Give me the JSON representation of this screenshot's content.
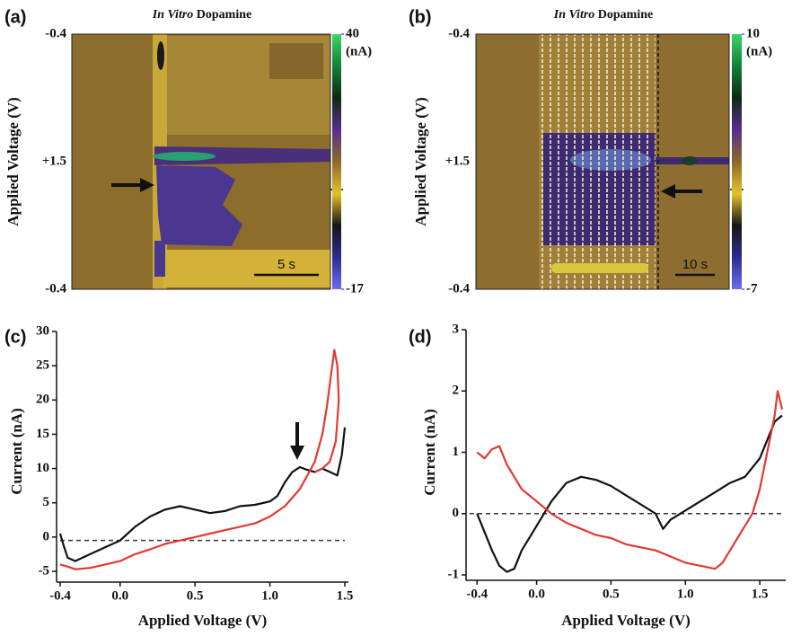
{
  "chart_data": [
    {
      "type": "heatmap",
      "panel": "(a)",
      "title_italic": "In Vitro",
      "title": "Dopamine",
      "ylabel": "Applied Voltage (V)",
      "ytick_labels": [
        "-0.4",
        "+1.5",
        "-0.4"
      ],
      "clim": [
        -17,
        40
      ],
      "cticks": [
        40,
        -17
      ],
      "colorbar_label": "(nA)",
      "scale_bar": "5 s",
      "colorscale": [
        "#3bd36a",
        "#15803a",
        "#0b2a14",
        "#5a2d8c",
        "#8a6a2a",
        "#e4c22a",
        "#161616",
        "#2c2c90",
        "#6b6cf2"
      ]
    },
    {
      "type": "heatmap",
      "panel": "(b)",
      "title_italic": "In Vitro",
      "title": "Dopamine",
      "ylabel": "Applied Voltage (V)",
      "ytick_labels": [
        "-0.4",
        "+1.5",
        "-0.4"
      ],
      "clim": [
        -7,
        10
      ],
      "cticks": [
        10,
        -7
      ],
      "colorbar_label": "(nA)",
      "scale_bar": "10 s",
      "colorscale": [
        "#3bd36a",
        "#15803a",
        "#0b2a14",
        "#5a2d8c",
        "#8a6a2a",
        "#e4c22a",
        "#161616",
        "#2c2c90",
        "#6b6cf2"
      ]
    },
    {
      "type": "line",
      "panel": "(c)",
      "xlabel": "Applied Voltage (V)",
      "ylabel": "Current (nA)",
      "xlim": [
        -0.4,
        1.5
      ],
      "ylim": [
        -5,
        30
      ],
      "xticks": [
        -0.4,
        {
          "value": 0,
          "label": "0.0"
        },
        0.5,
        {
          "value": 1,
          "label": "1.0"
        },
        1.5
      ],
      "yticks": [
        -5,
        0,
        5,
        10,
        15,
        20,
        25,
        30
      ],
      "reference_line": -0.5,
      "series": [
        {
          "color": "#111111",
          "x": [
            -0.4,
            -0.38,
            -0.35,
            -0.3,
            -0.25,
            -0.2,
            -0.1,
            0.0,
            0.1,
            0.2,
            0.3,
            0.4,
            0.5,
            0.6,
            0.7,
            0.8,
            0.9,
            1.0,
            1.05,
            1.1,
            1.15,
            1.2,
            1.25,
            1.3,
            1.35,
            1.4,
            1.45,
            1.48,
            1.5
          ],
          "values": [
            0.5,
            -1,
            -3,
            -3.5,
            -3,
            -2.5,
            -1.5,
            -0.5,
            1.5,
            3,
            4,
            4.5,
            4,
            3.5,
            3.8,
            4.5,
            4.7,
            5.2,
            6,
            8,
            9.5,
            10.2,
            9.8,
            9.5,
            10,
            9.5,
            9,
            12,
            16
          ]
        },
        {
          "color": "#e03a32",
          "x": [
            -0.4,
            -0.35,
            -0.3,
            -0.2,
            -0.1,
            0.0,
            0.1,
            0.2,
            0.3,
            0.4,
            0.5,
            0.6,
            0.7,
            0.8,
            0.9,
            1.0,
            1.1,
            1.2,
            1.25,
            1.3,
            1.35,
            1.38,
            1.41,
            1.43,
            1.45,
            1.46,
            1.44,
            1.4,
            1.35,
            1.3
          ],
          "values": [
            -4,
            -4.3,
            -4.7,
            -4.5,
            -4,
            -3.5,
            -2.5,
            -1.8,
            -1,
            -0.5,
            0,
            0.5,
            1,
            1.5,
            2,
            3,
            4.5,
            7,
            9,
            11,
            15,
            19,
            24,
            27.3,
            25,
            20,
            14,
            11,
            10,
            9.5
          ]
        }
      ]
    },
    {
      "type": "line",
      "panel": "(d)",
      "xlabel": "Applied Voltage (V)",
      "ylabel": "Current (nA)",
      "xlim": [
        -0.45,
        1.65
      ],
      "ylim": [
        -1,
        3
      ],
      "xticks": [
        -0.4,
        {
          "value": 0,
          "label": "0.0"
        },
        0.5,
        {
          "value": 1,
          "label": "1.0"
        },
        1.5
      ],
      "yticks": [
        -1,
        0,
        1,
        2,
        3
      ],
      "reference_line": 0,
      "series": [
        {
          "color": "#111111",
          "x": [
            -0.4,
            -0.35,
            -0.3,
            -0.25,
            -0.2,
            -0.15,
            -0.1,
            0.0,
            0.1,
            0.2,
            0.3,
            0.4,
            0.5,
            0.6,
            0.7,
            0.8,
            0.85,
            0.9,
            1.0,
            1.1,
            1.2,
            1.3,
            1.4,
            1.5,
            1.55,
            1.6,
            1.65
          ],
          "values": [
            0,
            -0.3,
            -0.6,
            -0.85,
            -0.95,
            -0.9,
            -0.6,
            -0.2,
            0.2,
            0.5,
            0.6,
            0.55,
            0.45,
            0.3,
            0.15,
            0,
            -0.25,
            -0.1,
            0.05,
            0.2,
            0.35,
            0.5,
            0.6,
            0.9,
            1.2,
            1.5,
            1.6
          ]
        },
        {
          "color": "#e03a32",
          "x": [
            -0.4,
            -0.35,
            -0.3,
            -0.25,
            -0.2,
            -0.15,
            -0.1,
            -0.05,
            0.0,
            0.1,
            0.2,
            0.3,
            0.4,
            0.5,
            0.6,
            0.7,
            0.8,
            0.9,
            1.0,
            1.1,
            1.2,
            1.25,
            1.3,
            1.35,
            1.4,
            1.45,
            1.5,
            1.55,
            1.6,
            1.62,
            1.65
          ],
          "values": [
            1.0,
            0.9,
            1.05,
            1.1,
            0.8,
            0.6,
            0.4,
            0.3,
            0.2,
            0,
            -0.15,
            -0.25,
            -0.35,
            -0.4,
            -0.5,
            -0.55,
            -0.6,
            -0.7,
            -0.8,
            -0.85,
            -0.9,
            -0.8,
            -0.6,
            -0.4,
            -0.2,
            0,
            0.4,
            1.0,
            1.6,
            2.0,
            1.7
          ]
        }
      ]
    }
  ]
}
